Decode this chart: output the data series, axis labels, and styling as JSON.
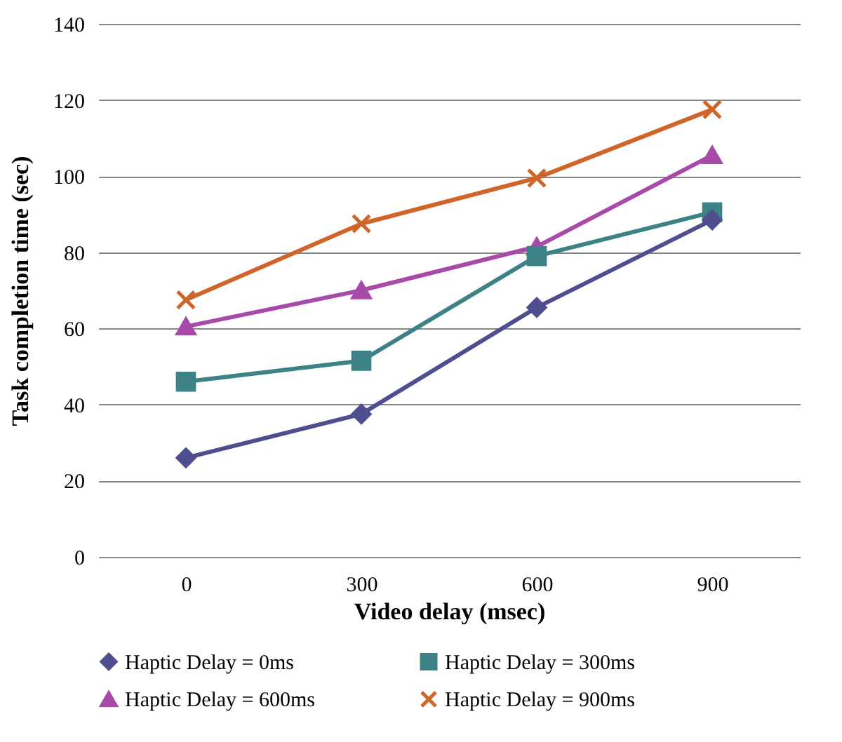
{
  "chart_data": {
    "type": "line",
    "xlabel": "Video delay (msec)",
    "ylabel": "Task completion time (sec)",
    "categories": [
      "0",
      "300",
      "600",
      "900"
    ],
    "series": [
      {
        "name": "Haptic Delay = 0ms",
        "color": "#4f4f8f",
        "marker": "diamond",
        "values": [
          26,
          37.5,
          65.5,
          88.5
        ]
      },
      {
        "name": "Haptic Delay = 300ms",
        "color": "#3d8286",
        "marker": "square",
        "values": [
          46,
          51.5,
          79,
          90.5
        ]
      },
      {
        "name": "Haptic Delay = 600ms",
        "color": "#a84aa8",
        "marker": "triangle",
        "values": [
          60.5,
          70,
          81.5,
          105.5
        ]
      },
      {
        "name": "Haptic Delay = 900ms",
        "color": "#d0652a",
        "marker": "cross",
        "values": [
          67.5,
          87.5,
          99.5,
          117.5
        ]
      }
    ],
    "ylim": [
      0,
      140
    ],
    "yticks": [
      0,
      20,
      40,
      60,
      80,
      100,
      120,
      140
    ],
    "grid": "y",
    "legend": "bottom"
  }
}
